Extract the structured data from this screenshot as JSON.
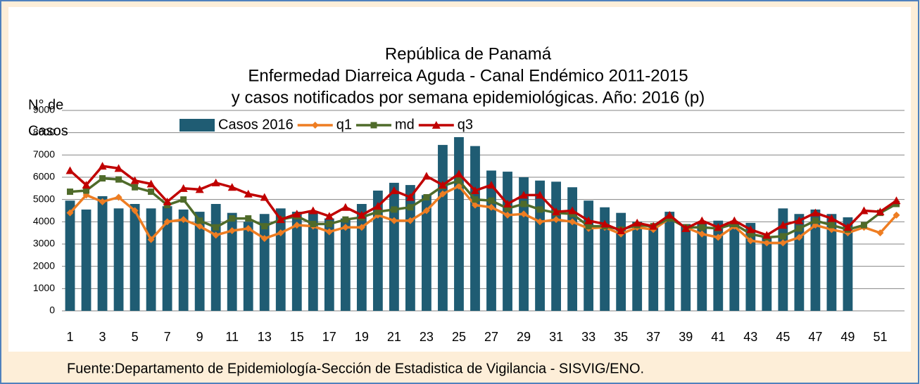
{
  "chart_data": {
    "type": "bar",
    "title": [
      "República de Panamá",
      "Enfermedad Diarreica Aguda - Canal Endémico 2011-2015",
      "y casos notificados por semana epidemiológicas.  Año: 2016 (p)"
    ],
    "y_label": [
      "N° de",
      "Casos"
    ],
    "source": "Fuente:Departamento de Epidemiología-Sección de Estadistica de Vigilancia - SISVIG/ENO.",
    "categories": [
      "1",
      null,
      "3",
      null,
      "5",
      null,
      "7",
      null,
      "9",
      null,
      "11",
      null,
      "13",
      null,
      "15",
      null,
      "17",
      null,
      "19",
      null,
      "21",
      null,
      "23",
      null,
      "25",
      null,
      "27",
      null,
      "29",
      null,
      "31",
      null,
      "33",
      null,
      "35",
      null,
      "37",
      null,
      "39",
      null,
      "41",
      null,
      "43",
      null,
      "45",
      null,
      "47",
      null,
      "49",
      null,
      "51",
      null
    ],
    "ylim": [
      0,
      9000
    ],
    "yticks": [
      0,
      1000,
      2000,
      3000,
      4000,
      5000,
      6000,
      7000,
      8000,
      9000
    ],
    "grid": true,
    "series": [
      {
        "name": "Casos 2016",
        "type": "bar",
        "color": "#1f5c73",
        "values": [
          4950,
          4550,
          5150,
          4600,
          4800,
          4600,
          4700,
          4550,
          4450,
          4800,
          4400,
          4000,
          4350,
          4600,
          4450,
          4450,
          4150,
          4150,
          4800,
          5400,
          5750,
          5650,
          5200,
          7450,
          7800,
          7400,
          6300,
          6250,
          6000,
          5850,
          5800,
          5550,
          4950,
          4650,
          4400,
          4000,
          3800,
          4450,
          3900,
          3950,
          4050,
          4000,
          3950,
          3300,
          4600,
          4350,
          4550,
          4350,
          4200,
          null,
          null,
          null
        ]
      },
      {
        "name": "q1",
        "type": "line",
        "marker": "diamond",
        "color": "#ee7d22",
        "values": [
          4400,
          5200,
          4900,
          5100,
          4500,
          3200,
          4000,
          4100,
          3800,
          3400,
          3600,
          3700,
          3250,
          3500,
          3850,
          3800,
          3550,
          3750,
          3750,
          4300,
          4050,
          4050,
          4500,
          5250,
          5600,
          4750,
          4650,
          4300,
          4350,
          4000,
          4100,
          4000,
          3700,
          3750,
          3450,
          3750,
          3650,
          4150,
          3750,
          3450,
          3300,
          3800,
          3150,
          3050,
          3050,
          3300,
          3850,
          3650,
          3500,
          3750,
          3500,
          4300
        ]
      },
      {
        "name": "md",
        "type": "line",
        "marker": "square",
        "color": "#4f6b2a",
        "values": [
          5350,
          5400,
          5950,
          5900,
          5550,
          5350,
          4750,
          5000,
          4050,
          3750,
          4150,
          4150,
          3800,
          4100,
          4250,
          3900,
          3900,
          4100,
          4200,
          4450,
          4550,
          4650,
          5100,
          5600,
          5850,
          5000,
          4950,
          4600,
          4800,
          4550,
          4400,
          4350,
          3800,
          3800,
          3650,
          3850,
          3800,
          4150,
          3750,
          3750,
          3700,
          3900,
          3450,
          3300,
          3350,
          3700,
          4050,
          3850,
          3650,
          3850,
          4400,
          4800
        ]
      },
      {
        "name": "q3",
        "type": "line",
        "marker": "triangle",
        "color": "#c00000",
        "values": [
          6300,
          5650,
          6500,
          6400,
          5850,
          5700,
          4900,
          5500,
          5450,
          5750,
          5550,
          5250,
          5100,
          4100,
          4350,
          4500,
          4250,
          4650,
          4300,
          4700,
          5400,
          5100,
          6050,
          5650,
          6150,
          5400,
          5650,
          4800,
          5200,
          5200,
          4450,
          4500,
          4050,
          3900,
          3600,
          3950,
          3800,
          4300,
          3700,
          4050,
          3750,
          4050,
          3650,
          3400,
          3850,
          4050,
          4400,
          4150,
          3750,
          4500,
          4450,
          4950
        ]
      }
    ]
  }
}
